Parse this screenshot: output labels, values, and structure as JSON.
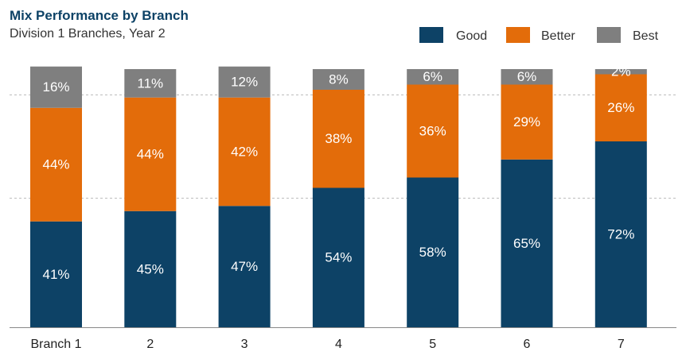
{
  "chart_data": {
    "type": "bar",
    "stacked": true,
    "title": "Mix Performance by Branch",
    "subtitle": "Division 1 Branches, Year 2",
    "categories": [
      "Branch 1",
      "2",
      "3",
      "4",
      "5",
      "6",
      "7"
    ],
    "series": [
      {
        "name": "Good",
        "values": [
          41,
          45,
          47,
          54,
          58,
          65,
          72
        ],
        "labels": [
          "41%",
          "45%",
          "47%",
          "54%",
          "58%",
          "65%",
          "72%"
        ]
      },
      {
        "name": "Better",
        "values": [
          44,
          44,
          42,
          38,
          36,
          29,
          26
        ],
        "labels": [
          "44%",
          "44%",
          "42%",
          "38%",
          "36%",
          "29%",
          "26%"
        ]
      },
      {
        "name": "Best",
        "values": [
          16,
          11,
          12,
          8,
          6,
          6,
          2
        ],
        "labels": [
          "16%",
          "11%",
          "12%",
          "8%",
          "6%",
          "6%",
          "2%"
        ]
      }
    ],
    "colors": {
      "Good": "#0d4266",
      "Better": "#e36c0a",
      "Best": "#7f7f7f"
    },
    "ylim": [
      0,
      100
    ],
    "grid": "dashed-horizontal",
    "legend_position": "top-right"
  }
}
